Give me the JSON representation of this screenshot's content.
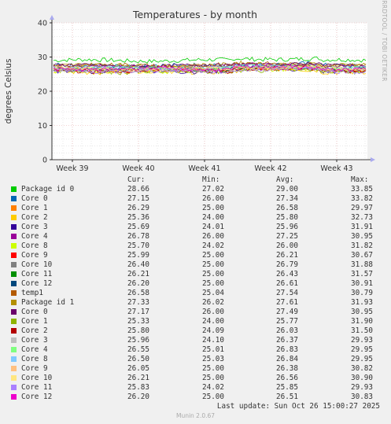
{
  "chart_data": {
    "type": "line",
    "title": "Temperatures - by month",
    "ylabel": "degrees Celsius",
    "side_text": "RRDTOOL / TOBI OETIKER",
    "ylim": [
      0,
      40
    ],
    "yticks": [
      0,
      10,
      20,
      30,
      40
    ],
    "xlabels": [
      "Week 39",
      "Week 40",
      "Week 41",
      "Week 42",
      "Week 43"
    ],
    "grid": true,
    "column_headers": {
      "cur": "Cur:",
      "min": "Min:",
      "avg": "Avg:",
      "max": "Max:"
    },
    "series": [
      {
        "name": "Package id 0",
        "color": "#00cc00",
        "cur": "28.66",
        "min": "27.02",
        "avg": "29.00",
        "max": "33.85"
      },
      {
        "name": "Core 0",
        "color": "#0066b3",
        "cur": "27.15",
        "min": "26.00",
        "avg": "27.34",
        "max": "33.82"
      },
      {
        "name": "Core 1",
        "color": "#ff8000",
        "cur": "26.29",
        "min": "25.00",
        "avg": "26.58",
        "max": "29.97"
      },
      {
        "name": "Core 2",
        "color": "#ffcc00",
        "cur": "25.36",
        "min": "24.00",
        "avg": "25.80",
        "max": "32.73"
      },
      {
        "name": "Core 3",
        "color": "#330099",
        "cur": "25.69",
        "min": "24.01",
        "avg": "25.96",
        "max": "31.91"
      },
      {
        "name": "Core 4",
        "color": "#990099",
        "cur": "26.78",
        "min": "26.00",
        "avg": "27.25",
        "max": "30.95"
      },
      {
        "name": "Core 8",
        "color": "#ccff00",
        "cur": "25.70",
        "min": "24.02",
        "avg": "26.00",
        "max": "31.82"
      },
      {
        "name": "Core 9",
        "color": "#ff0000",
        "cur": "25.99",
        "min": "25.00",
        "avg": "26.21",
        "max": "30.67"
      },
      {
        "name": "Core 10",
        "color": "#808080",
        "cur": "26.40",
        "min": "25.00",
        "avg": "26.79",
        "max": "31.88"
      },
      {
        "name": "Core 11",
        "color": "#008f00",
        "cur": "26.21",
        "min": "25.00",
        "avg": "26.43",
        "max": "31.57"
      },
      {
        "name": "Core 12",
        "color": "#00487d",
        "cur": "26.20",
        "min": "25.00",
        "avg": "26.61",
        "max": "30.91"
      },
      {
        "name": "temp1",
        "color": "#b35a00",
        "cur": "26.58",
        "min": "25.04",
        "avg": "27.54",
        "max": "30.79"
      },
      {
        "name": "Package id 1",
        "color": "#b38f00",
        "cur": "27.33",
        "min": "26.02",
        "avg": "27.61",
        "max": "31.93"
      },
      {
        "name": "Core 0",
        "color": "#6b006b",
        "cur": "27.17",
        "min": "26.00",
        "avg": "27.49",
        "max": "30.95"
      },
      {
        "name": "Core 1",
        "color": "#8fb300",
        "cur": "25.33",
        "min": "24.00",
        "avg": "25.77",
        "max": "31.90"
      },
      {
        "name": "Core 2",
        "color": "#b30000",
        "cur": "25.80",
        "min": "24.09",
        "avg": "26.03",
        "max": "31.50"
      },
      {
        "name": "Core 3",
        "color": "#bebebe",
        "cur": "25.96",
        "min": "24.10",
        "avg": "26.37",
        "max": "29.93"
      },
      {
        "name": "Core 4",
        "color": "#80ff80",
        "cur": "26.55",
        "min": "25.01",
        "avg": "26.83",
        "max": "29.95"
      },
      {
        "name": "Core 8",
        "color": "#80c9ff",
        "cur": "26.50",
        "min": "25.03",
        "avg": "26.84",
        "max": "29.95"
      },
      {
        "name": "Core 9",
        "color": "#ffc080",
        "cur": "26.05",
        "min": "25.00",
        "avg": "26.38",
        "max": "30.82"
      },
      {
        "name": "Core 10",
        "color": "#ffe680",
        "cur": "26.21",
        "min": "25.00",
        "avg": "26.56",
        "max": "30.90"
      },
      {
        "name": "Core 11",
        "color": "#aa80ff",
        "cur": "25.83",
        "min": "24.02",
        "avg": "25.85",
        "max": "29.93"
      },
      {
        "name": "Core 12",
        "color": "#ee00cc",
        "cur": "26.20",
        "min": "25.00",
        "avg": "26.51",
        "max": "30.83"
      }
    ]
  },
  "footer": {
    "last_update": "Last update: Sun Oct 26 15:00:27 2025",
    "version": "Munin 2.0.67"
  }
}
